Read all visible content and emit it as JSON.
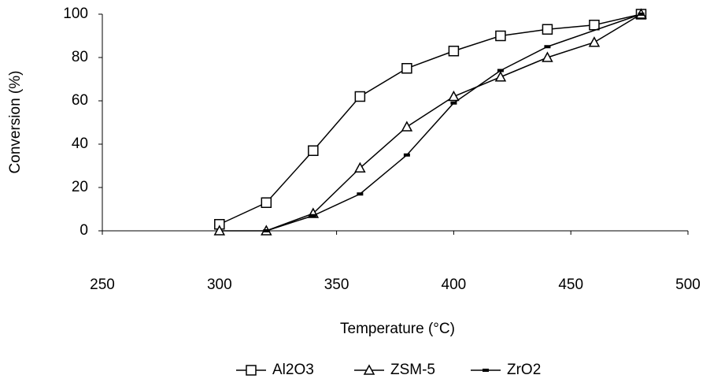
{
  "chart_data": {
    "type": "line",
    "xlabel": "Temperature (°C)",
    "ylabel": "Conversion (%)",
    "series": [
      {
        "name": "Al2O3",
        "color": "#000000",
        "marker": "square",
        "x": [
          300,
          320,
          340,
          360,
          380,
          400,
          420,
          440,
          460,
          480
        ],
        "values": [
          3,
          13,
          37,
          62,
          75,
          83,
          90,
          93,
          95,
          100
        ]
      },
      {
        "name": "ZSM-5",
        "color": "#000000",
        "marker": "triangle",
        "x": [
          300,
          320,
          340,
          360,
          380,
          400,
          420,
          440,
          460,
          480
        ],
        "values": [
          0,
          0,
          8,
          29,
          48,
          62,
          71,
          80,
          87,
          100
        ]
      },
      {
        "name": "ZrO2",
        "color": "#000000",
        "marker": "dash",
        "x": [
          320,
          340,
          360,
          380,
          400,
          420,
          440,
          480
        ],
        "values": [
          0,
          7,
          17,
          35,
          59,
          74,
          85,
          100
        ]
      }
    ],
    "xlim": [
      250,
      500
    ],
    "xticks": [
      250,
      300,
      350,
      400,
      450,
      500
    ],
    "ylim": [
      0,
      100
    ],
    "yticks": [
      0,
      20,
      40,
      60,
      80,
      100
    ],
    "grid": false,
    "legend": "bottom"
  }
}
